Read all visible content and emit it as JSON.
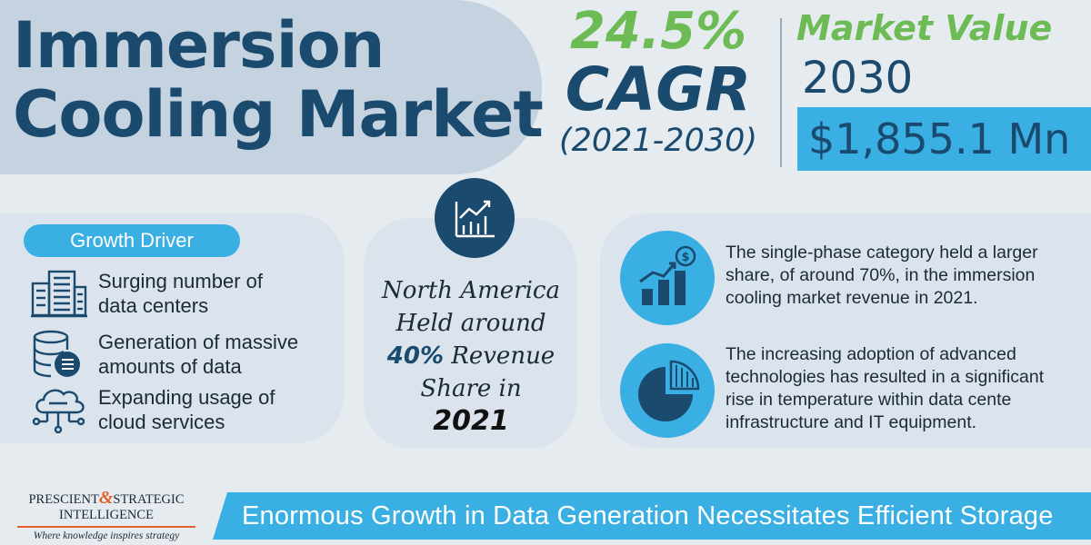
{
  "header": {
    "title_line1": "Immersion",
    "title_line2": "Cooling Market",
    "cagr_value": "24.5%",
    "cagr_label": "CAGR",
    "cagr_period": "(2021-2030)",
    "market_value_label": "Market Value",
    "market_value_year": "2030",
    "market_value": "$1,855.1 Mn"
  },
  "growth_drivers": {
    "label": "Growth Driver",
    "items": [
      {
        "icon": "building-icon",
        "line1": "Surging number of",
        "line2": "data centers"
      },
      {
        "icon": "database-icon",
        "line1": "Generation of massive",
        "line2": "amounts of data"
      },
      {
        "icon": "cloud-network-icon",
        "line1": "Expanding usage of",
        "line2": "cloud services"
      }
    ]
  },
  "regional": {
    "icon": "growth-chart-icon",
    "line1": "North America",
    "line2": "Held around",
    "pct": "40%",
    "line3": "Revenue",
    "line4": "Share in",
    "year": "2021"
  },
  "insights": [
    {
      "icon": "bar-chart-dollar-icon",
      "lines": [
        "The single-phase category held a larger",
        "share, of around 70%, in the immersion",
        "cooling market revenue in 2021."
      ]
    },
    {
      "icon": "pie-chart-icon",
      "lines": [
        "The increasing adoption of advanced",
        "technologies has resulted in a significant",
        "rise in temperature within data cente",
        "infrastructure and IT equipment."
      ]
    }
  ],
  "footer": {
    "logo_word1": "PRESCIENT",
    "logo_amp": "&",
    "logo_word2": "STRATEGIC",
    "logo_word3": "INTELLIGENCE",
    "logo_tagline": "Where knowledge inspires strategy",
    "banner": "Enormous Growth in Data Generation Necessitates Efficient Storage"
  },
  "colors": {
    "navy": "#1a4a6e",
    "green": "#6dbb55",
    "sky": "#3aafe4",
    "orange": "#e0612a"
  }
}
